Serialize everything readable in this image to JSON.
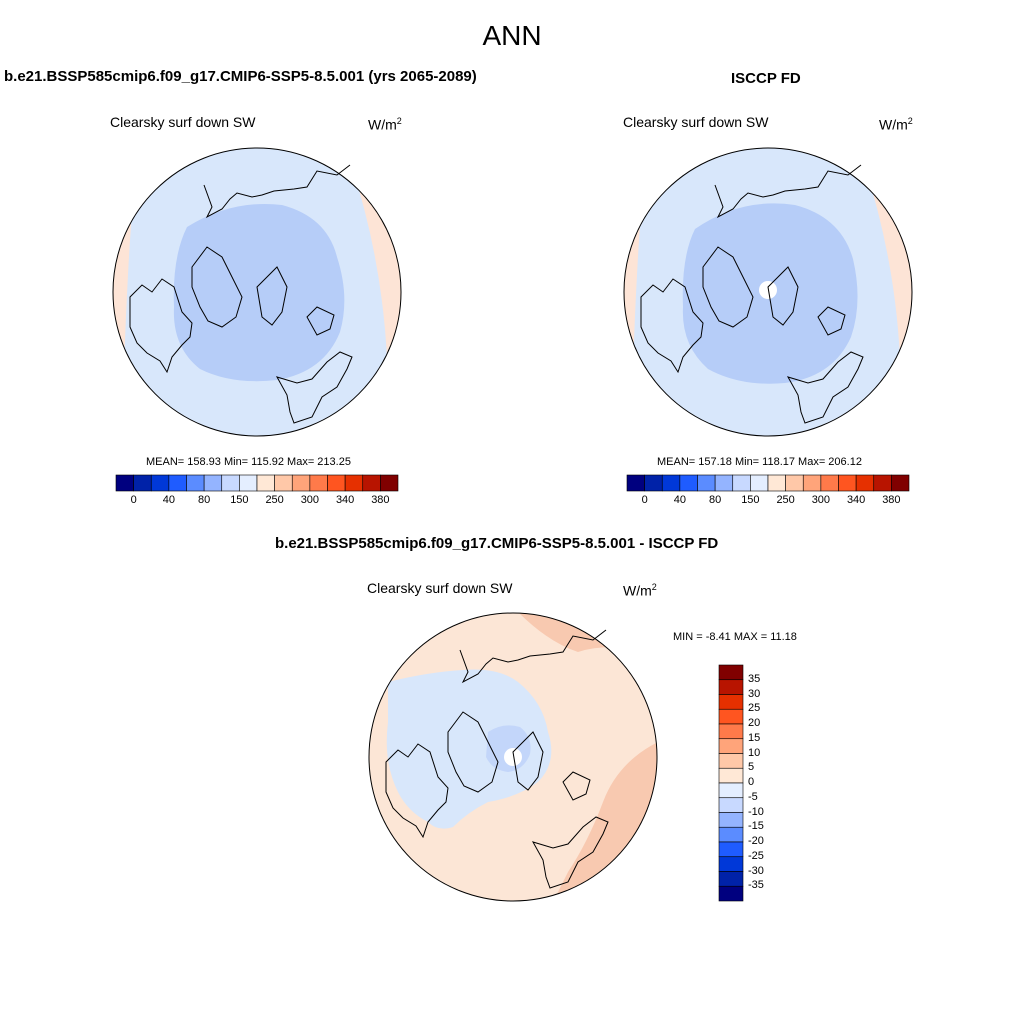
{
  "page": {
    "title": "ANN"
  },
  "panels": {
    "model": {
      "case_title": "b.e21.BSSP585cmip6.f09_g17.CMIP6-SSP5-8.5.001 (yrs 2065-2089)",
      "variable_label": "Clearsky surf down SW",
      "units_base": "W/m",
      "units_exp": "2",
      "stats_text": "MEAN= 158.93  Min= 115.92  Max= 213.25",
      "mean": 158.93,
      "min": 115.92,
      "max": 213.25
    },
    "obs": {
      "case_title": "ISCCP FD",
      "variable_label": "Clearsky surf down SW",
      "units_base": "W/m",
      "units_exp": "2",
      "stats_text": "MEAN= 157.18  Min= 118.17  Max= 206.12",
      "mean": 157.18,
      "min": 118.17,
      "max": 206.12
    },
    "diff": {
      "case_title": "b.e21.BSSP585cmip6.f09_g17.CMIP6-SSP5-8.5.001 - ISCCP FD",
      "variable_label": "Clearsky surf down SW",
      "units_base": "W/m",
      "units_exp": "2",
      "stats_text": "MIN =  -8.41 MAX =  11.18",
      "min": -8.41,
      "max": 11.18
    }
  },
  "colorbars": {
    "main": {
      "orientation": "horizontal",
      "colors": [
        "#00007f",
        "#0022a8",
        "#0038d8",
        "#1f5cff",
        "#5b8cff",
        "#94b4ff",
        "#c8d9ff",
        "#e4eeff",
        "#ffe8d6",
        "#ffc8a8",
        "#ffa47a",
        "#ff7a4a",
        "#ff5520",
        "#e63000",
        "#b81400",
        "#800000"
      ],
      "tick_labels": [
        "0",
        "40",
        "80",
        "150",
        "250",
        "300",
        "340",
        "380"
      ]
    },
    "diff": {
      "orientation": "vertical",
      "colors": [
        "#800000",
        "#b81400",
        "#e63000",
        "#ff5520",
        "#ff7a4a",
        "#ffa47a",
        "#ffc8a8",
        "#ffe8d6",
        "#e4eeff",
        "#c8d9ff",
        "#94b4ff",
        "#5b8cff",
        "#1f5cff",
        "#0038d8",
        "#0022a8",
        "#00007f"
      ],
      "tick_labels": [
        "35",
        "30",
        "25",
        "20",
        "15",
        "10",
        "5",
        "0",
        "-5",
        "-10",
        "-15",
        "-20",
        "-25",
        "-30",
        "-35"
      ]
    }
  },
  "colors": {
    "land_line": "#000000",
    "model_outer": "#d8e7fb",
    "model_inner": "#b6cdf8",
    "model_warm": "#fde4d6",
    "obs_outer": "#d8e7fb",
    "obs_inner": "#b6cdf8",
    "obs_warm": "#fde4d6",
    "diff_base": "#fce6d6",
    "diff_warm": "#f8c9b0",
    "diff_cool": "#d8e7fb",
    "diff_cooler": "#c3d6fa",
    "missing": "#ffffff"
  }
}
